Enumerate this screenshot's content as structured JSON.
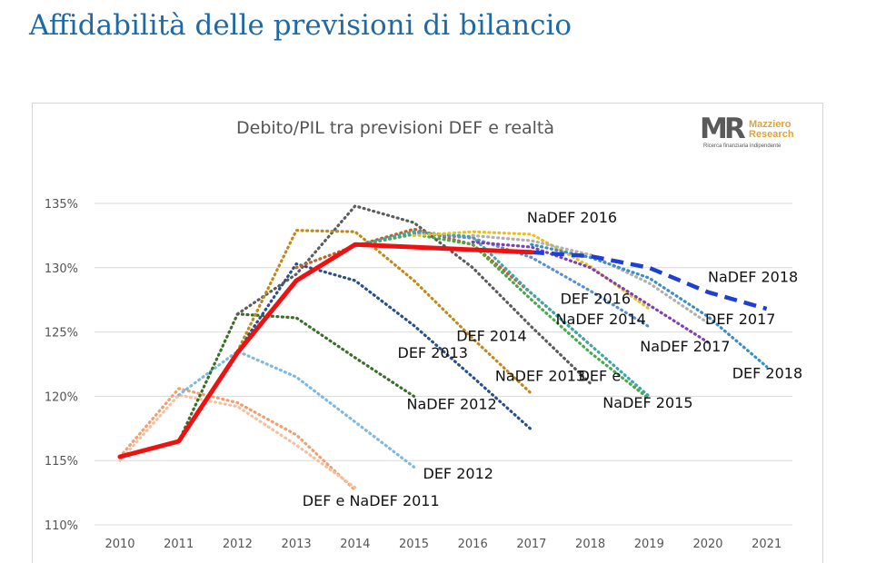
{
  "page": {
    "title": "Affidabilità delle previsioni di bilancio"
  },
  "logo": {
    "mark": "MR",
    "name_line1": "Mazziero",
    "name_line2": "Research",
    "tagline": "Ricerca finanziaria indipendente",
    "accent_color": "#e2a33a"
  },
  "chart_data": {
    "type": "line",
    "title": "Debito/PIL tra previsioni DEF e realtà",
    "xlabel": "",
    "ylabel": "",
    "ylim": [
      110,
      136
    ],
    "grid": true,
    "x": [
      "2010",
      "2011",
      "2012",
      "2013",
      "2014",
      "2015",
      "2016",
      "2017",
      "2018",
      "2019",
      "2020",
      "2021"
    ],
    "y_ticks": [
      {
        "value": 110,
        "label": "110%"
      },
      {
        "value": 115,
        "label": "115%"
      },
      {
        "value": 120,
        "label": "120%"
      },
      {
        "value": 125,
        "label": "125%"
      },
      {
        "value": 130,
        "label": "130%"
      },
      {
        "value": 135,
        "label": "135%"
      }
    ],
    "series": [
      {
        "name": "DEF e NaDEF 2011",
        "color": "#f0a070",
        "style": "dotted",
        "points": [
          [
            "2010",
            115.3
          ],
          [
            "2011",
            120.6
          ],
          [
            "2012",
            119.5
          ],
          [
            "2013",
            117
          ],
          [
            "2014",
            112.7
          ]
        ]
      },
      {
        "name": "",
        "color": "#f5c0a0",
        "style": "dotted",
        "points": [
          [
            "2010",
            115.0
          ],
          [
            "2011",
            120.1
          ],
          [
            "2012",
            119.2
          ],
          [
            "2013",
            116.2
          ],
          [
            "2014",
            112.9
          ]
        ]
      },
      {
        "name": "DEF 2012",
        "color": "#80b8e0",
        "style": "dotted",
        "points": [
          [
            "2011",
            120.1
          ],
          [
            "2012",
            123.5
          ],
          [
            "2013",
            121.5
          ],
          [
            "2014",
            118
          ],
          [
            "2015",
            114.5
          ]
        ]
      },
      {
        "name": "NaDEF 2012",
        "color": "#3a6e2a",
        "style": "dotted",
        "points": [
          [
            "2011",
            116.5
          ],
          [
            "2012",
            126.4
          ],
          [
            "2013",
            126.1
          ],
          [
            "2014",
            123
          ],
          [
            "2015",
            120
          ]
        ]
      },
      {
        "name": "DEF 2013",
        "color": "#2b4f8a",
        "style": "dotted",
        "points": [
          [
            "2012",
            123.5
          ],
          [
            "2013",
            130.3
          ],
          [
            "2014",
            129
          ],
          [
            "2015",
            125.5
          ],
          [
            "2016",
            121.5
          ],
          [
            "2017",
            117.4
          ]
        ]
      },
      {
        "name": "NaDEF 2013",
        "color": "#5c5c5c",
        "style": "dotted",
        "points": [
          [
            "2012",
            126.4
          ],
          [
            "2013",
            129.5
          ],
          [
            "2014",
            134.8
          ],
          [
            "2015",
            133.5
          ],
          [
            "2016",
            130
          ],
          [
            "2017",
            125.4
          ],
          [
            "2018",
            121
          ]
        ]
      },
      {
        "name": "DEF 2014",
        "color": "#c08a1a",
        "style": "dotted",
        "points": [
          [
            "2012",
            123.5
          ],
          [
            "2013",
            132.9
          ],
          [
            "2014",
            132.8
          ],
          [
            "2015",
            129
          ],
          [
            "2016",
            124.5
          ],
          [
            "2017",
            120.2
          ]
        ]
      },
      {
        "name": "NaDEF 2014",
        "color": "#c0622a",
        "style": "dotted",
        "points": [
          [
            "2013",
            130
          ],
          [
            "2014",
            131.7
          ],
          [
            "2015",
            133
          ],
          [
            "2016",
            131.8
          ],
          [
            "2017",
            128
          ],
          [
            "2018",
            124
          ]
        ]
      },
      {
        "name": "DEF e NaDEF 2015",
        "color": "#4aa84a",
        "style": "dotted",
        "points": [
          [
            "2014",
            131.7
          ],
          [
            "2015",
            132.6
          ],
          [
            "2016",
            131.8
          ],
          [
            "2017",
            127.5
          ],
          [
            "2018",
            123.4
          ],
          [
            "2019",
            119.8
          ]
        ]
      },
      {
        "name": "",
        "color": "#3aa8a8",
        "style": "dotted",
        "points": [
          [
            "2014",
            131.7
          ],
          [
            "2015",
            132.8
          ],
          [
            "2016",
            132.4
          ],
          [
            "2017",
            128
          ],
          [
            "2018",
            124
          ],
          [
            "2019",
            120
          ]
        ]
      },
      {
        "name": "DEF 2016",
        "color": "#5a8fd0",
        "style": "dotted",
        "points": [
          [
            "2015",
            132.7
          ],
          [
            "2016",
            132.3
          ],
          [
            "2017",
            130.8
          ],
          [
            "2018",
            128.2
          ],
          [
            "2019",
            125.4
          ]
        ]
      },
      {
        "name": "NaDEF 2016",
        "color": "#e8c020",
        "style": "dotted",
        "points": [
          [
            "2015",
            132.5
          ],
          [
            "2016",
            132.8
          ],
          [
            "2017",
            132.6
          ],
          [
            "2018",
            130.1
          ],
          [
            "2019",
            126.8
          ]
        ]
      },
      {
        "name": "NaDEF 2017",
        "color": "#8040b0",
        "style": "dotted",
        "points": [
          [
            "2016",
            132
          ],
          [
            "2017",
            131.6
          ],
          [
            "2018",
            130
          ],
          [
            "2019",
            127.1
          ],
          [
            "2020",
            124.2
          ]
        ]
      },
      {
        "name": "DEF 2017",
        "color": "#b0b0b0",
        "style": "dotted",
        "points": [
          [
            "2016",
            132.5
          ],
          [
            "2017",
            132.1
          ],
          [
            "2018",
            131
          ],
          [
            "2019",
            128.8
          ],
          [
            "2020",
            125.7
          ]
        ]
      },
      {
        "name": "DEF 2018",
        "color": "#3a8ec8",
        "style": "dotted",
        "points": [
          [
            "2017",
            131.8
          ],
          [
            "2018",
            130.8
          ],
          [
            "2019",
            129.2
          ],
          [
            "2020",
            126.2
          ],
          [
            "2021",
            122.3
          ]
        ]
      },
      {
        "name": "NaDEF 2018",
        "color": "#1f3fd0",
        "style": "dashed",
        "points": [
          [
            "2017",
            131.2
          ],
          [
            "2018",
            130.9
          ],
          [
            "2019",
            130
          ],
          [
            "2020",
            128.1
          ],
          [
            "2021",
            126.8
          ]
        ]
      },
      {
        "name": "",
        "color": "#ee1111",
        "style": "solid",
        "points": [
          [
            "2010",
            115.3
          ],
          [
            "2011",
            116.5
          ],
          [
            "2012",
            123.4
          ],
          [
            "2013",
            129
          ],
          [
            "2014",
            131.8
          ],
          [
            "2015",
            131.6
          ],
          [
            "2016",
            131.4
          ],
          [
            "2017",
            131.2
          ]
        ]
      }
    ],
    "labels": [
      {
        "text": "NaDEF 2016",
        "x": "2017",
        "y": 133.5
      },
      {
        "text": "NaDEF 2018",
        "x": "2020",
        "y": 128.9
      },
      {
        "text": "DEF 2016",
        "x": "2018",
        "y": 127.2
      },
      {
        "text": "NaDEF 2014",
        "x": "2018",
        "y": 125.6
      },
      {
        "text": "DEF 2017",
        "x": "2020",
        "y": 125.6
      },
      {
        "text": "DEF 2014",
        "x": "2016",
        "y": 124.3
      },
      {
        "text": "NaDEF 2017",
        "x": "2019",
        "y": 123.5
      },
      {
        "text": "DEF 2013",
        "x": "2015",
        "y": 123
      },
      {
        "text": "NaDEF 2013",
        "x": "2017",
        "y": 121.2
      },
      {
        "text": "DEF e",
        "x": "2018",
        "y": 121.2
      },
      {
        "text": "DEF 2018",
        "x": "2021",
        "y": 121.4
      },
      {
        "text": "NaDEF 2012",
        "x": "2015",
        "y": 119
      },
      {
        "text": "NaDEF 2015",
        "x": "2019",
        "y": 119.1
      },
      {
        "text": "DEF 2012",
        "x": "2015",
        "y": 113.6
      },
      {
        "text": "DEF e NaDEF 2011",
        "x": "2014",
        "y": 111.5
      }
    ]
  }
}
